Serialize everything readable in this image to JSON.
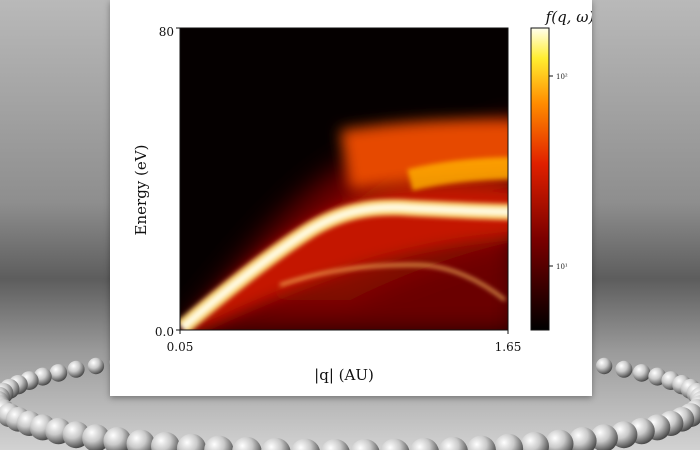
{
  "chart_data": {
    "type": "heatmap",
    "title": "",
    "xlabel": "|q| (AU)",
    "ylabel": "Energy (eV)",
    "colorbar_label": "f(q, ω)",
    "colormap": "hot",
    "colorbar_scale": "log",
    "colorbar_ticks": [
      "10²",
      "10¹"
    ],
    "xlim": [
      0.05,
      1.65
    ],
    "ylim": [
      0.0,
      80
    ],
    "x_ticks": [
      "0.05",
      "1.65"
    ],
    "y_ticks": [
      "0.0",
      "80"
    ],
    "features": [
      {
        "name": "primary dispersion branch",
        "points": [
          [
            0.05,
            2
          ],
          [
            0.3,
            12
          ],
          [
            0.55,
            24
          ],
          [
            0.75,
            32
          ],
          [
            0.9,
            34
          ],
          [
            1.2,
            34
          ],
          [
            1.65,
            34
          ]
        ]
      },
      {
        "name": "secondary branch",
        "points": [
          [
            0.35,
            14
          ],
          [
            0.6,
            17
          ],
          [
            0.9,
            17
          ],
          [
            1.2,
            16
          ],
          [
            1.4,
            12
          ],
          [
            1.65,
            6
          ]
        ]
      }
    ]
  },
  "colors": {
    "background": "#8c8c8c",
    "panel": "#ffffff",
    "colormap_low": "#000000",
    "colormap_mid": "#cc1a00",
    "colormap_high": "#ffffdd"
  }
}
